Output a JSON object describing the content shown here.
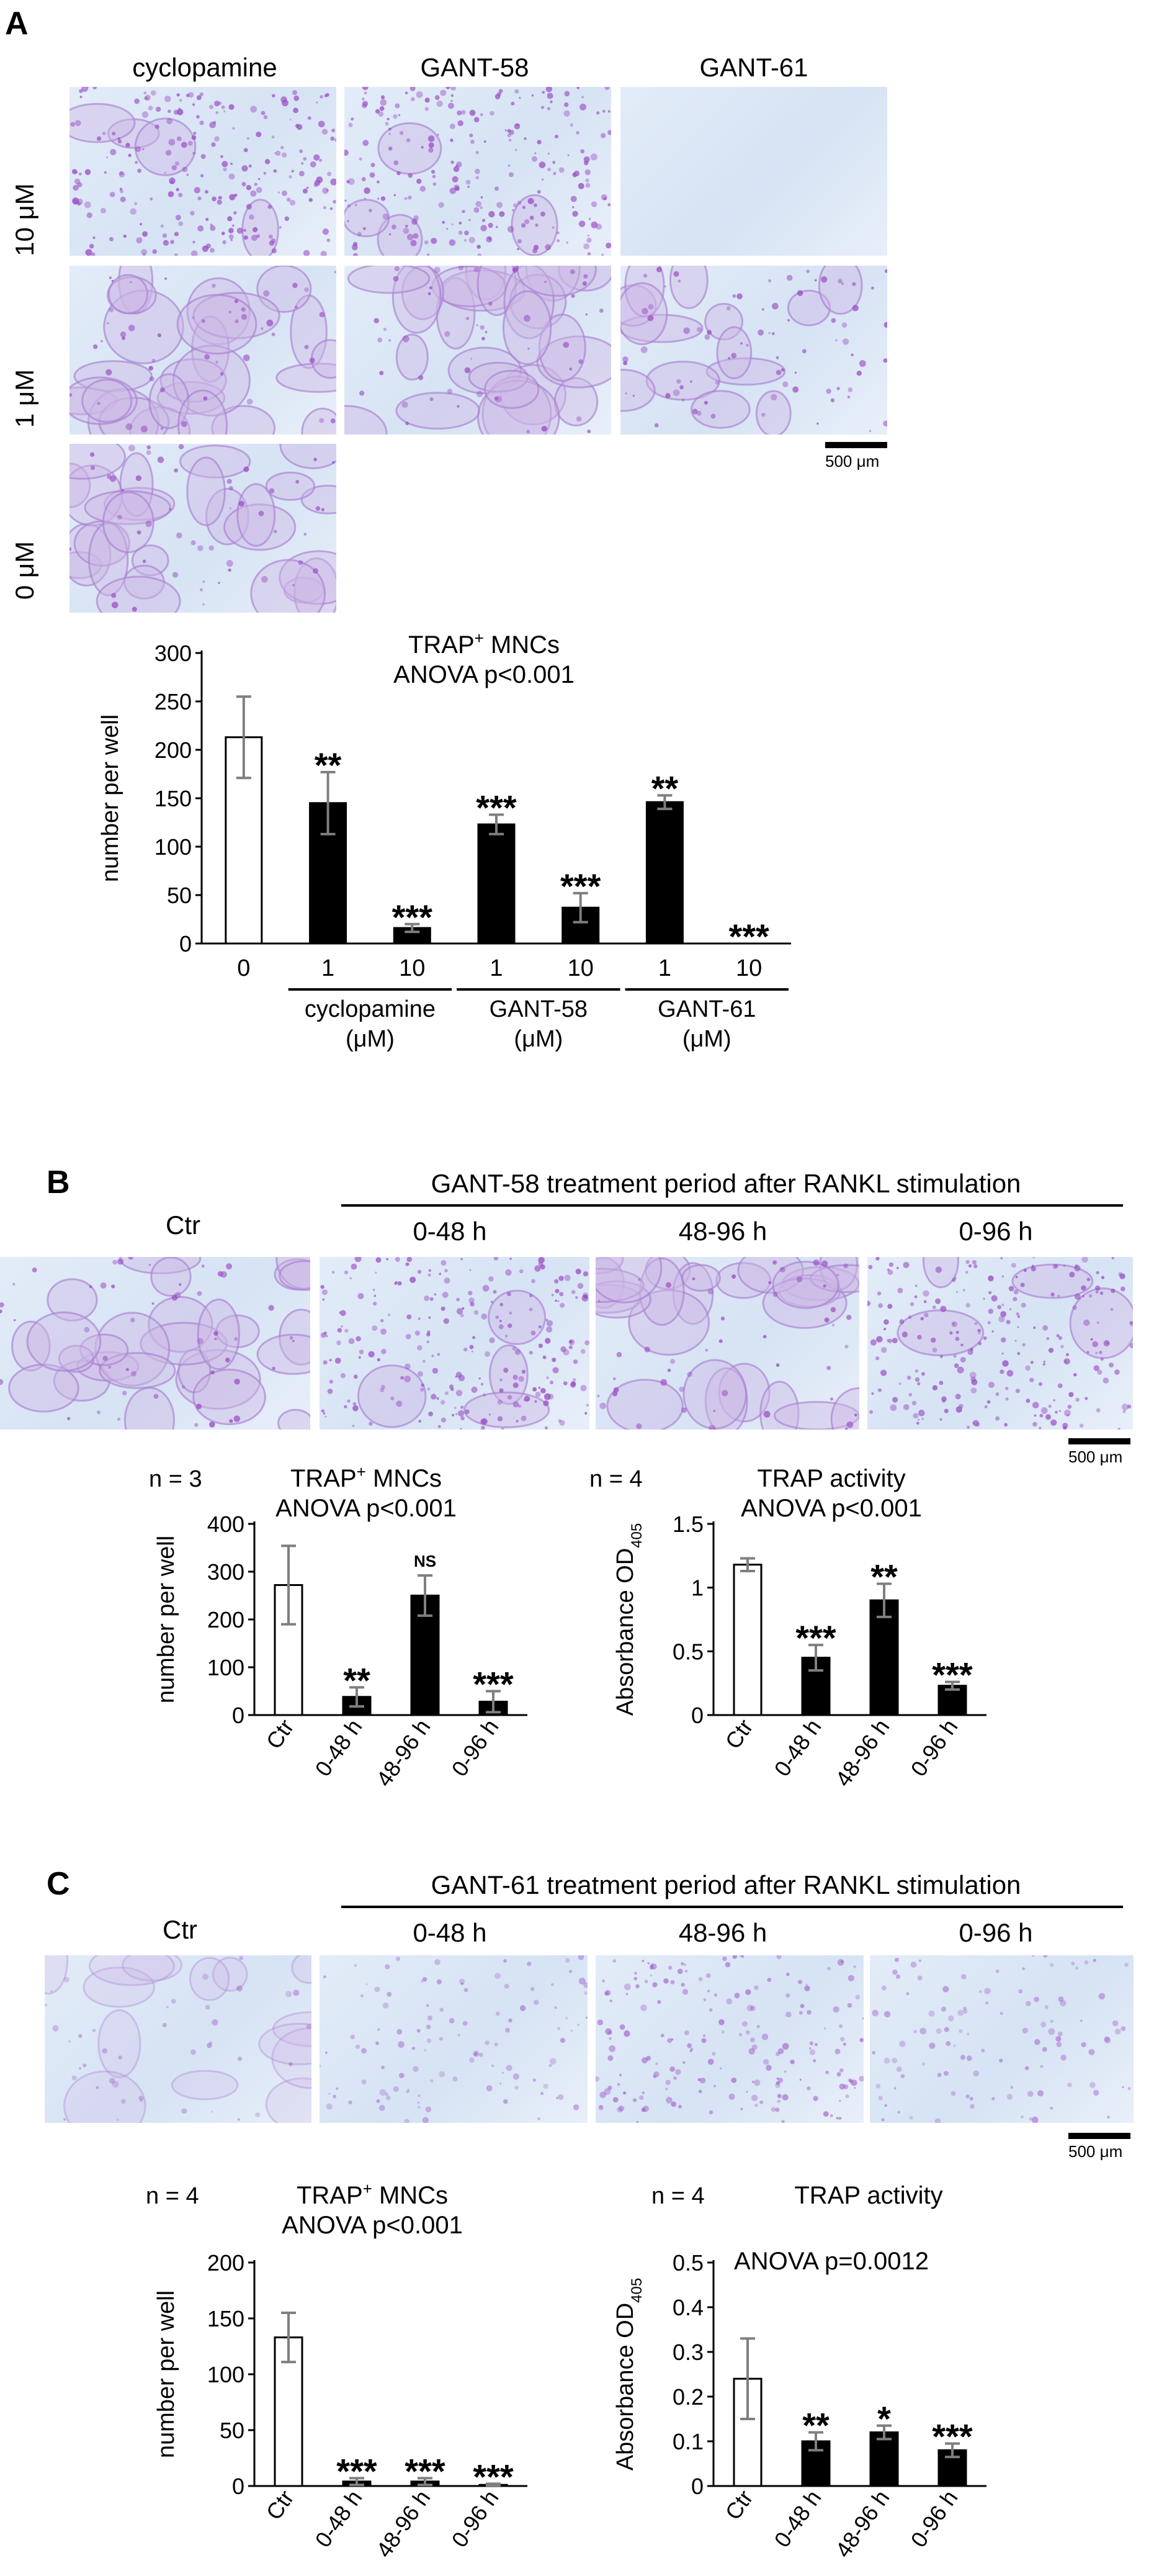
{
  "panels": {
    "A": {
      "letter": "A",
      "col_headers": [
        "cyclopamine",
        "GANT-58",
        "GANT-61"
      ],
      "row_labels": [
        "10 μM",
        "1 μM",
        "0 μM"
      ],
      "scalebar": "500 μm"
    },
    "B": {
      "letter": "B",
      "header": "GANT-58 treatment period after RANKL stimulation",
      "col_headers": [
        "Ctr",
        "0-48 h",
        "48-96 h",
        "0-96 h"
      ],
      "scalebar": "500 μm"
    },
    "C": {
      "letter": "C",
      "header": "GANT-61 treatment period after RANKL stimulation",
      "col_headers": [
        "Ctr",
        "0-48 h",
        "48-96 h",
        "0-96 h"
      ],
      "scalebar": "500 μm"
    }
  },
  "colors": {
    "bar_control": "#ffffff",
    "bar_treated": "#000000",
    "error_bar": "#7f7f7f",
    "micro_bg": "#dfe9f7",
    "micro_stain": "#a45bc6"
  },
  "chart_data": [
    {
      "id": "A",
      "type": "bar",
      "title_main": "TRAP",
      "title_sup": "+",
      "title_rest": " MNCs",
      "subtitle": "ANOVA p<0.001",
      "ylabel": "number per well",
      "ylim": [
        0,
        300
      ],
      "yticks": [
        0,
        50,
        100,
        150,
        200,
        250,
        300
      ],
      "categories": [
        "0",
        "1",
        "10",
        "1",
        "10",
        "1",
        "10"
      ],
      "values": [
        213,
        145,
        16,
        123,
        37,
        146,
        0
      ],
      "errors": [
        42,
        32,
        4,
        10,
        15,
        7,
        0
      ],
      "fill": [
        "open",
        "filled",
        "filled",
        "filled",
        "filled",
        "filled",
        "filled"
      ],
      "annotations": [
        "",
        "**",
        "***",
        "***",
        "***",
        "**",
        "***"
      ],
      "groups": [
        {
          "label": "cyclopamine",
          "unit": "(μM)",
          "span": [
            1,
            2
          ]
        },
        {
          "label": "GANT-58",
          "unit": "(μM)",
          "span": [
            3,
            4
          ]
        },
        {
          "label": "GANT-61",
          "unit": "(μM)",
          "span": [
            5,
            6
          ]
        }
      ]
    },
    {
      "id": "B1",
      "type": "bar",
      "n_label": "n = 3",
      "title_main": "TRAP",
      "title_sup": "+",
      "title_rest": " MNCs",
      "subtitle": "ANOVA p<0.001",
      "ylabel": "number per well",
      "ylim": [
        0,
        400
      ],
      "yticks": [
        0,
        100,
        200,
        300,
        400
      ],
      "categories": [
        "Ctr",
        "0-48 h",
        "48-96 h",
        "0-96 h"
      ],
      "values": [
        272,
        38,
        250,
        28
      ],
      "errors": [
        82,
        20,
        42,
        22
      ],
      "fill": [
        "open",
        "filled",
        "filled",
        "filled"
      ],
      "annotations": [
        "",
        "**",
        "NS",
        "***"
      ]
    },
    {
      "id": "B2",
      "type": "bar",
      "n_label": "n = 4",
      "title_main": "TRAP activity",
      "subtitle": "ANOVA p<0.001",
      "ylabel": "Absorbance OD",
      "ylabel_sub": "405",
      "ylim": [
        0,
        1.5
      ],
      "yticks": [
        0,
        0.5,
        1,
        1.5
      ],
      "ytick_labels": [
        "0",
        "0.5",
        "1",
        "1.5"
      ],
      "categories": [
        "Ctr",
        "0-48 h",
        "48-96 h",
        "0-96 h"
      ],
      "values": [
        1.18,
        0.45,
        0.9,
        0.23
      ],
      "errors": [
        0.05,
        0.1,
        0.13,
        0.03
      ],
      "fill": [
        "open",
        "filled",
        "filled",
        "filled"
      ],
      "annotations": [
        "",
        "***",
        "**",
        "***"
      ]
    },
    {
      "id": "C1",
      "type": "bar",
      "n_label": "n = 4",
      "title_main": "TRAP",
      "title_sup": "+",
      "title_rest": " MNCs",
      "subtitle": "ANOVA p<0.001",
      "ylabel": "number per well",
      "ylim": [
        0,
        200
      ],
      "yticks": [
        0,
        50,
        100,
        150,
        200
      ],
      "categories": [
        "Ctr",
        "0-48 h",
        "48-96 h",
        "0-96 h"
      ],
      "values": [
        133,
        4,
        4,
        1
      ],
      "errors": [
        22,
        3,
        3,
        1
      ],
      "fill": [
        "open",
        "filled",
        "filled",
        "filled"
      ],
      "annotations": [
        "",
        "***",
        "***",
        "***"
      ]
    },
    {
      "id": "C2",
      "type": "bar",
      "n_label": "n = 4",
      "title_main": "TRAP activity",
      "subtitle": "ANOVA p=0.0012",
      "ylabel": "Absorbance OD",
      "ylabel_sub": "405",
      "ylim": [
        0,
        0.5
      ],
      "yticks": [
        0,
        0.1,
        0.2,
        0.3,
        0.4,
        0.5
      ],
      "ytick_labels": [
        "0",
        "0.1",
        "0.2",
        "0.3",
        "0.4",
        "0.5"
      ],
      "categories": [
        "Ctr",
        "0-48 h",
        "48-96 h",
        "0-96 h"
      ],
      "values": [
        0.24,
        0.1,
        0.12,
        0.08
      ],
      "errors": [
        0.09,
        0.02,
        0.015,
        0.015
      ],
      "fill": [
        "open",
        "filled",
        "filled",
        "filled"
      ],
      "annotations": [
        "",
        "**",
        "*",
        "***"
      ]
    }
  ]
}
